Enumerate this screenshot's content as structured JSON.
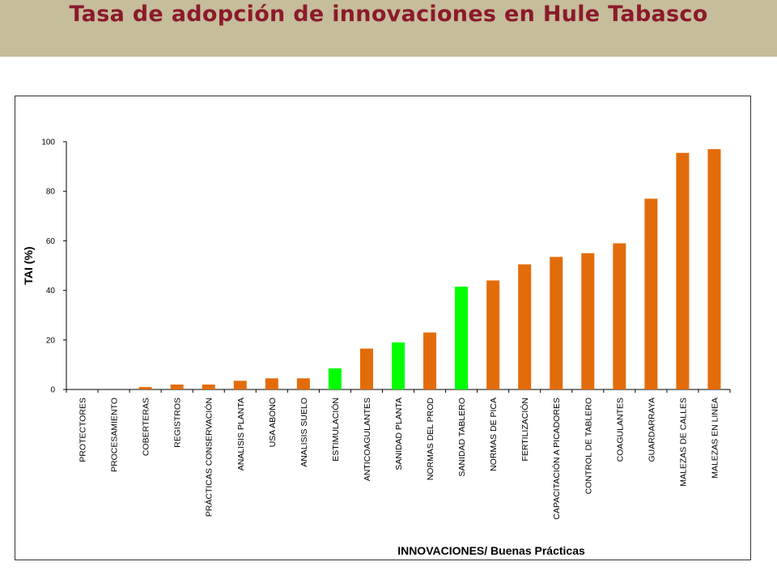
{
  "slide": {
    "title": "Tasa de adopción de innovaciones en Hule Tabasco"
  },
  "colors": {
    "band": "#c6bd9a",
    "title": "#8b1a2c",
    "orange": "#e36c0a",
    "green": "#00ff00"
  },
  "chart_data": {
    "type": "bar",
    "ylabel": "TAI (%)",
    "xlabel": "INNOVACIONES/ Buenas Prácticas",
    "ylim": [
      0,
      100
    ],
    "yticks": [
      0,
      20,
      40,
      60,
      80,
      100
    ],
    "grid": false,
    "categories": [
      "PROTECTORES",
      "PROCESAMIENTO",
      "COBERTERAS",
      "REGISTROS",
      "PRÁCTICAS CONSERVACIÓN",
      "ANALISIS PLANTA",
      "USA ABONO",
      "ANALISIS SUELO",
      "ESTIMULACIÓN",
      "ANTICOAGULANTES",
      "SANIDAD PLANTA",
      "NORMAS DEL PROD",
      "SANIDAD TABLERO",
      "NORMAS DE PICA",
      "FERTILIZACIÓN",
      "CAPACITACIÓN A PICADORES",
      "CONTROL DE TABLERO",
      "COAGULANTES",
      "GUARDARRAYA",
      "MALEZAS DE CALLES",
      "MALEZAS EN LINEA"
    ],
    "values": [
      0,
      0,
      1,
      2,
      2,
      3.5,
      4.5,
      4.5,
      8.5,
      16.5,
      19,
      23,
      41.5,
      44,
      50.5,
      53.5,
      55,
      59,
      77,
      95.5,
      97
    ],
    "bar_colors": [
      "orange",
      "orange",
      "orange",
      "orange",
      "orange",
      "orange",
      "orange",
      "orange",
      "green",
      "orange",
      "green",
      "orange",
      "green",
      "orange",
      "orange",
      "orange",
      "orange",
      "orange",
      "orange",
      "orange",
      "orange"
    ]
  }
}
